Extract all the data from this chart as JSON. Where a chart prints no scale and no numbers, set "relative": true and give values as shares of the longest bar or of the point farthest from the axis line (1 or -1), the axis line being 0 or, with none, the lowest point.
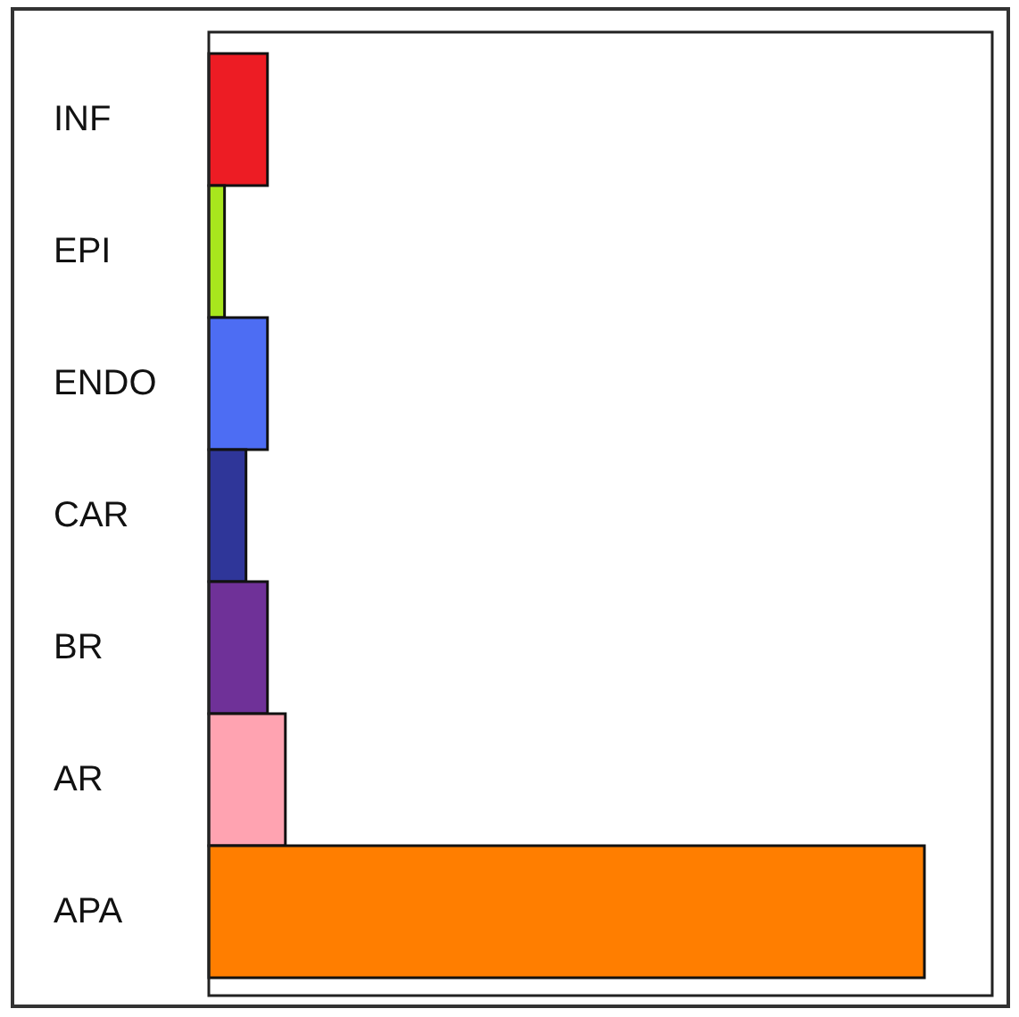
{
  "chart_data": {
    "type": "bar",
    "orientation": "horizontal",
    "relative": true,
    "categories": [
      "INF",
      "EPI",
      "ENDO",
      "CAR",
      "BR",
      "AR",
      "APA"
    ],
    "values": [
      0.082,
      0.022,
      0.082,
      0.052,
      0.082,
      0.107,
      1
    ],
    "colors": [
      "#ed1c24",
      "#a8e61d",
      "#4d6df3",
      "#2f3699",
      "#6f3198",
      "#ffa3b1",
      "#ff7e00"
    ]
  }
}
